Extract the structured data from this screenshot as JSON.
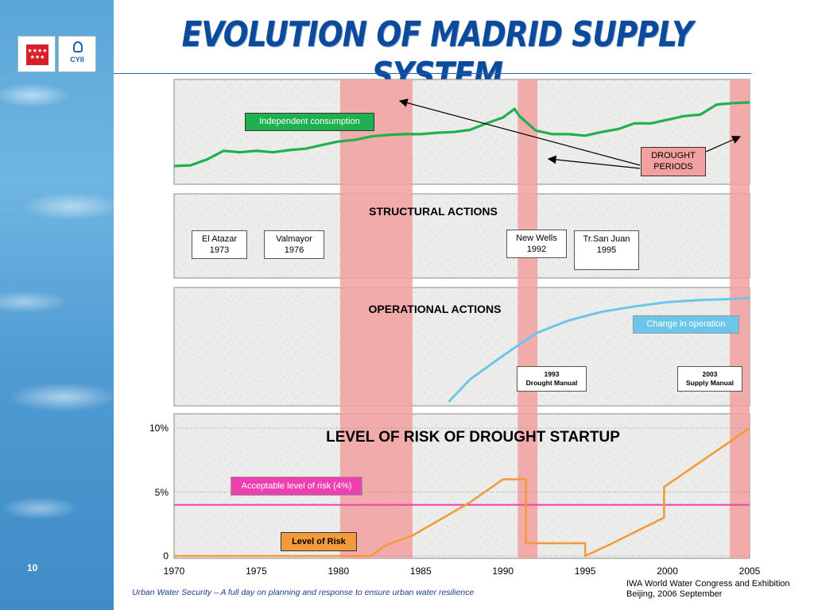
{
  "slide": {
    "title": "EVOLUTION OF MADRID SUPPLY SYSTEM",
    "page_number": "10",
    "footer_left": "Urban Water Security – A full day on planning and response to ensure urban water resilience",
    "footer_right_line1": "IWA World Water Congress and Exhibition",
    "footer_right_line2": "Beijing, 2006 September",
    "logo_left_icon": "stars-flag-icon",
    "logo_right_label": "CYII"
  },
  "colors": {
    "consumption": "#1fb050",
    "operation": "#6cc6ea",
    "risk": "#f39a3a",
    "acceptable": "#ee3fb0",
    "drought_band": "#f2a0a0",
    "title": "#0e4a9c"
  },
  "chart_data": [
    {
      "type": "line",
      "panel": "consumption",
      "series": [
        {
          "name": "Independent consumption",
          "x": [
            1970,
            1971,
            1972,
            1973,
            1974,
            1975,
            1976,
            1977,
            1978,
            1979,
            1980,
            1981,
            1982,
            1983,
            1984,
            1985,
            1986,
            1987,
            1988,
            1989,
            1990,
            1990.7,
            1991,
            1992,
            1993,
            1994,
            1995,
            1996,
            1997,
            1998,
            1999,
            2000,
            2001,
            2002,
            2003,
            2004,
            2005
          ],
          "y": [
            0.11,
            0.12,
            0.2,
            0.32,
            0.3,
            0.32,
            0.3,
            0.33,
            0.35,
            0.4,
            0.45,
            0.47,
            0.52,
            0.54,
            0.55,
            0.55,
            0.57,
            0.58,
            0.61,
            0.7,
            0.78,
            0.9,
            0.8,
            0.6,
            0.55,
            0.55,
            0.53,
            0.58,
            0.62,
            0.7,
            0.7,
            0.75,
            0.8,
            0.82,
            0.96,
            0.98,
            0.99
          ]
        }
      ],
      "labels": {
        "series_box": "Independent consumption",
        "drought_box": "DROUGHT\nPERIODS"
      }
    },
    {
      "type": "line",
      "panel": "operation",
      "series": [
        {
          "name": "Change in operation",
          "x": [
            1986.7,
            1988,
            1990,
            1992,
            1994,
            1996,
            1998,
            2000,
            2002,
            2004,
            2005
          ],
          "y": [
            0.03,
            0.24,
            0.46,
            0.67,
            0.79,
            0.87,
            0.92,
            0.96,
            0.98,
            0.99,
            1.0
          ]
        }
      ]
    },
    {
      "type": "line",
      "panel": "risk",
      "title": "LEVEL OF RISK OF DROUGHT STARTUP",
      "ylim": [
        0,
        10
      ],
      "yticks": [
        "0",
        "5%",
        "10%"
      ],
      "xticks": [
        "1970",
        "1975",
        "1980",
        "1985",
        "1990",
        "1995",
        "2000",
        "2005"
      ],
      "series": [
        {
          "name": "Level of Risk",
          "x": [
            1970,
            1982,
            1982.8,
            1984.5,
            1988,
            1990,
            1990.8,
            1991.4,
            1991.4,
            1995,
            1995,
            1996.5,
            1999.8,
            1999.8,
            2005
          ],
          "y": [
            0,
            0,
            0.8,
            1.6,
            4.2,
            6.0,
            6.0,
            6.0,
            1.0,
            1.0,
            0,
            0.9,
            3.0,
            5.4,
            10
          ]
        },
        {
          "name": "Acceptable level of risk (4%)",
          "x": [
            1970,
            2005
          ],
          "y": [
            4,
            4
          ]
        }
      ]
    }
  ],
  "drought_periods": [
    {
      "start": 1980.1,
      "end": 1984.5
    },
    {
      "start": 1990.9,
      "end": 1992.1
    },
    {
      "start": 2003.8,
      "end": 2005.0
    }
  ],
  "panels": {
    "structural_title": "STRUCTURAL ACTIONS",
    "operational_title": "OPERATIONAL ACTIONS"
  },
  "structural_actions": [
    {
      "name": "El Atazar",
      "year": "1973"
    },
    {
      "name": "Valmayor",
      "year": "1976"
    },
    {
      "name": "New Wells",
      "year": "1992"
    },
    {
      "name": "Tr.San Juan",
      "year": "1995"
    }
  ],
  "operational_actions": [
    {
      "year": "1993",
      "name": "Drought Manual"
    },
    {
      "year": "2003",
      "name": "Supply Manual"
    }
  ]
}
